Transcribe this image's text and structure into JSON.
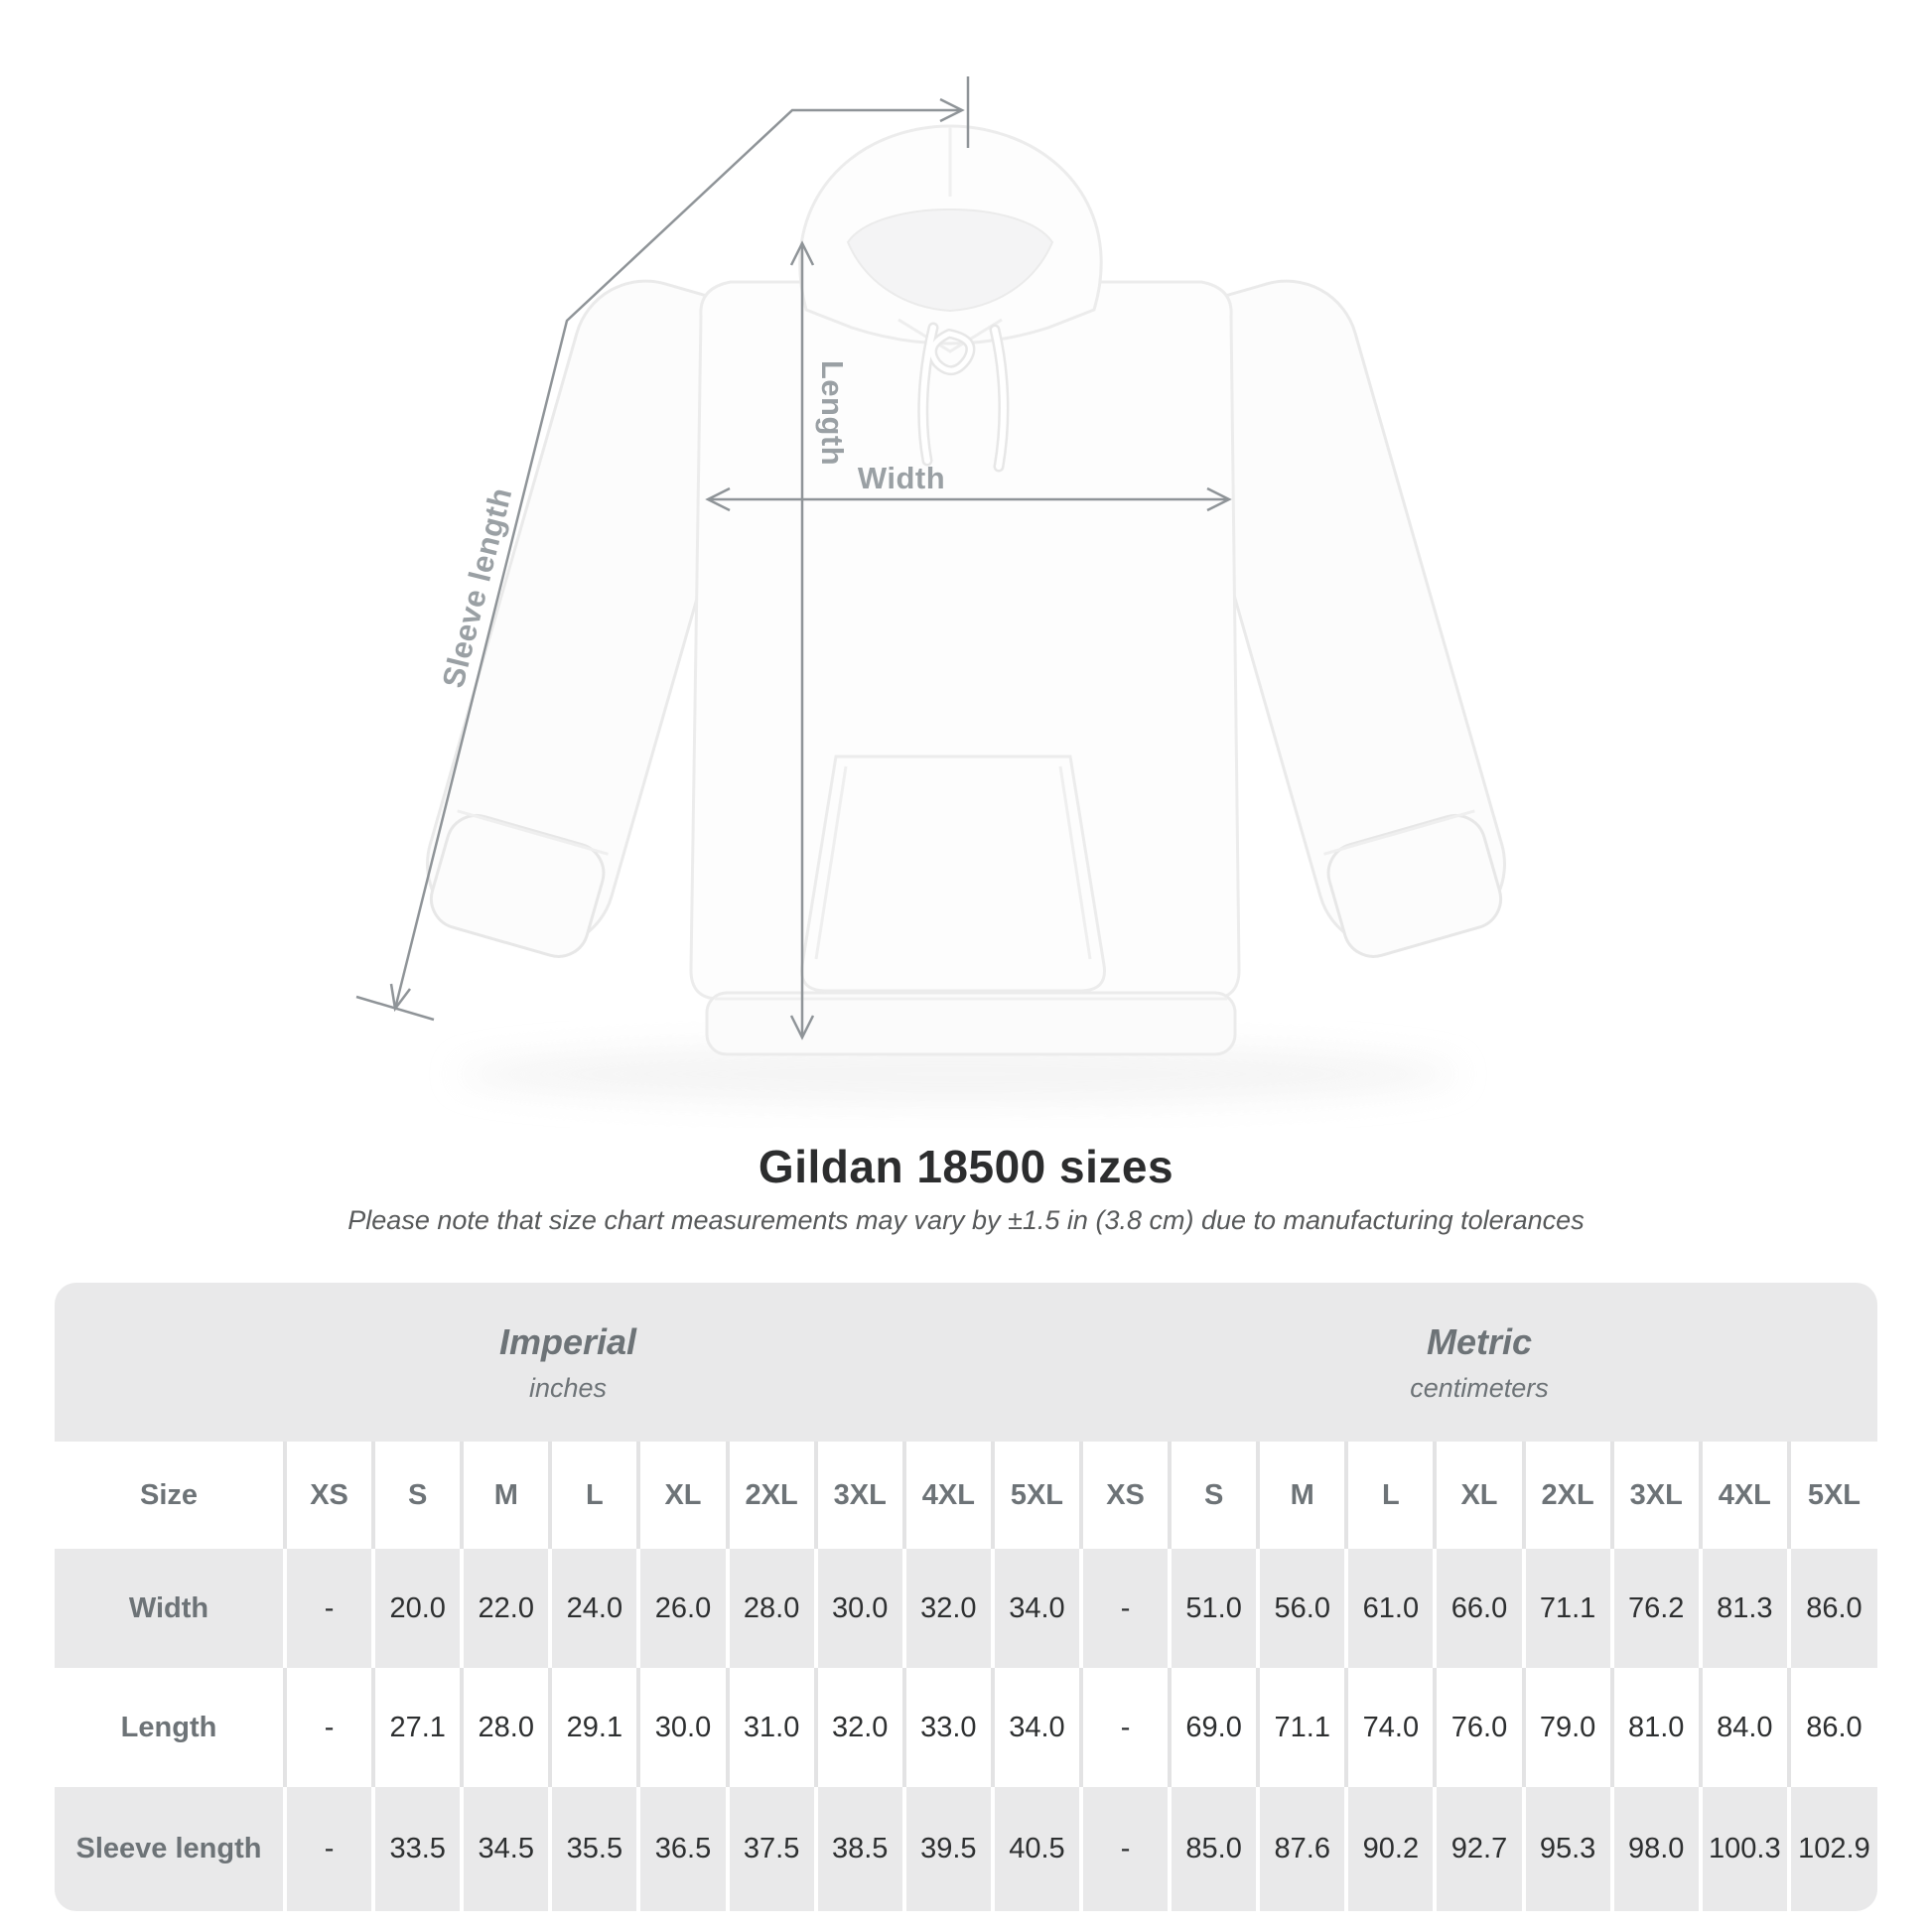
{
  "diagram": {
    "length_label": "Length",
    "width_label": "Width",
    "sleeve_label": "Sleeve length"
  },
  "title": "Gildan 18500 sizes",
  "note": "Please note that size chart measurements may vary by ±1.5 in (3.8 cm) due to manufacturing tolerances",
  "table": {
    "size_label": "Size",
    "unit_groups": [
      {
        "name": "Imperial",
        "unit": "inches"
      },
      {
        "name": "Metric",
        "unit": "centimeters"
      }
    ],
    "sizes": [
      "XS",
      "S",
      "M",
      "L",
      "XL",
      "2XL",
      "3XL",
      "4XL",
      "5XL"
    ],
    "rows": [
      {
        "label": "Width",
        "imperial": [
          "-",
          "20.0",
          "22.0",
          "24.0",
          "26.0",
          "28.0",
          "30.0",
          "32.0",
          "34.0"
        ],
        "metric": [
          "-",
          "51.0",
          "56.0",
          "61.0",
          "66.0",
          "71.1",
          "76.2",
          "81.3",
          "86.0"
        ]
      },
      {
        "label": "Length",
        "imperial": [
          "-",
          "27.1",
          "28.0",
          "29.1",
          "30.0",
          "31.0",
          "32.0",
          "33.0",
          "34.0"
        ],
        "metric": [
          "-",
          "69.0",
          "71.1",
          "74.0",
          "76.0",
          "79.0",
          "81.0",
          "84.0",
          "86.0"
        ]
      },
      {
        "label": "Sleeve length",
        "imperial": [
          "-",
          "33.5",
          "34.5",
          "35.5",
          "36.5",
          "37.5",
          "38.5",
          "39.5",
          "40.5"
        ],
        "metric": [
          "-",
          "85.0",
          "87.6",
          "90.2",
          "92.7",
          "95.3",
          "98.0",
          "100.3",
          "102.9"
        ]
      }
    ]
  },
  "chart_data": {
    "type": "table",
    "title": "Gildan 18500 sizes",
    "columns": [
      "Size",
      "XS",
      "S",
      "M",
      "L",
      "XL",
      "2XL",
      "3XL",
      "4XL",
      "5XL"
    ],
    "imperial_unit": "inches",
    "metric_unit": "centimeters",
    "rows_imperial": [
      [
        "Width",
        null,
        20.0,
        22.0,
        24.0,
        26.0,
        28.0,
        30.0,
        32.0,
        34.0
      ],
      [
        "Length",
        null,
        27.1,
        28.0,
        29.1,
        30.0,
        31.0,
        32.0,
        33.0,
        34.0
      ],
      [
        "Sleeve length",
        null,
        33.5,
        34.5,
        35.5,
        36.5,
        37.5,
        38.5,
        39.5,
        40.5
      ]
    ],
    "rows_metric": [
      [
        "Width",
        null,
        51.0,
        56.0,
        61.0,
        66.0,
        71.1,
        76.2,
        81.3,
        86.0
      ],
      [
        "Length",
        null,
        69.0,
        71.1,
        74.0,
        76.0,
        79.0,
        81.0,
        84.0,
        86.0
      ],
      [
        "Sleeve length",
        null,
        85.0,
        87.6,
        90.2,
        92.7,
        95.3,
        98.0,
        100.3,
        102.9
      ]
    ]
  },
  "colors": {
    "arrow": "#8f9498",
    "dimension_label": "#9aa0a4",
    "table_band": "#e9e9ea",
    "table_value": "#2d2f30",
    "table_label": "#6d7377",
    "title_text": "#2c2d2e"
  }
}
